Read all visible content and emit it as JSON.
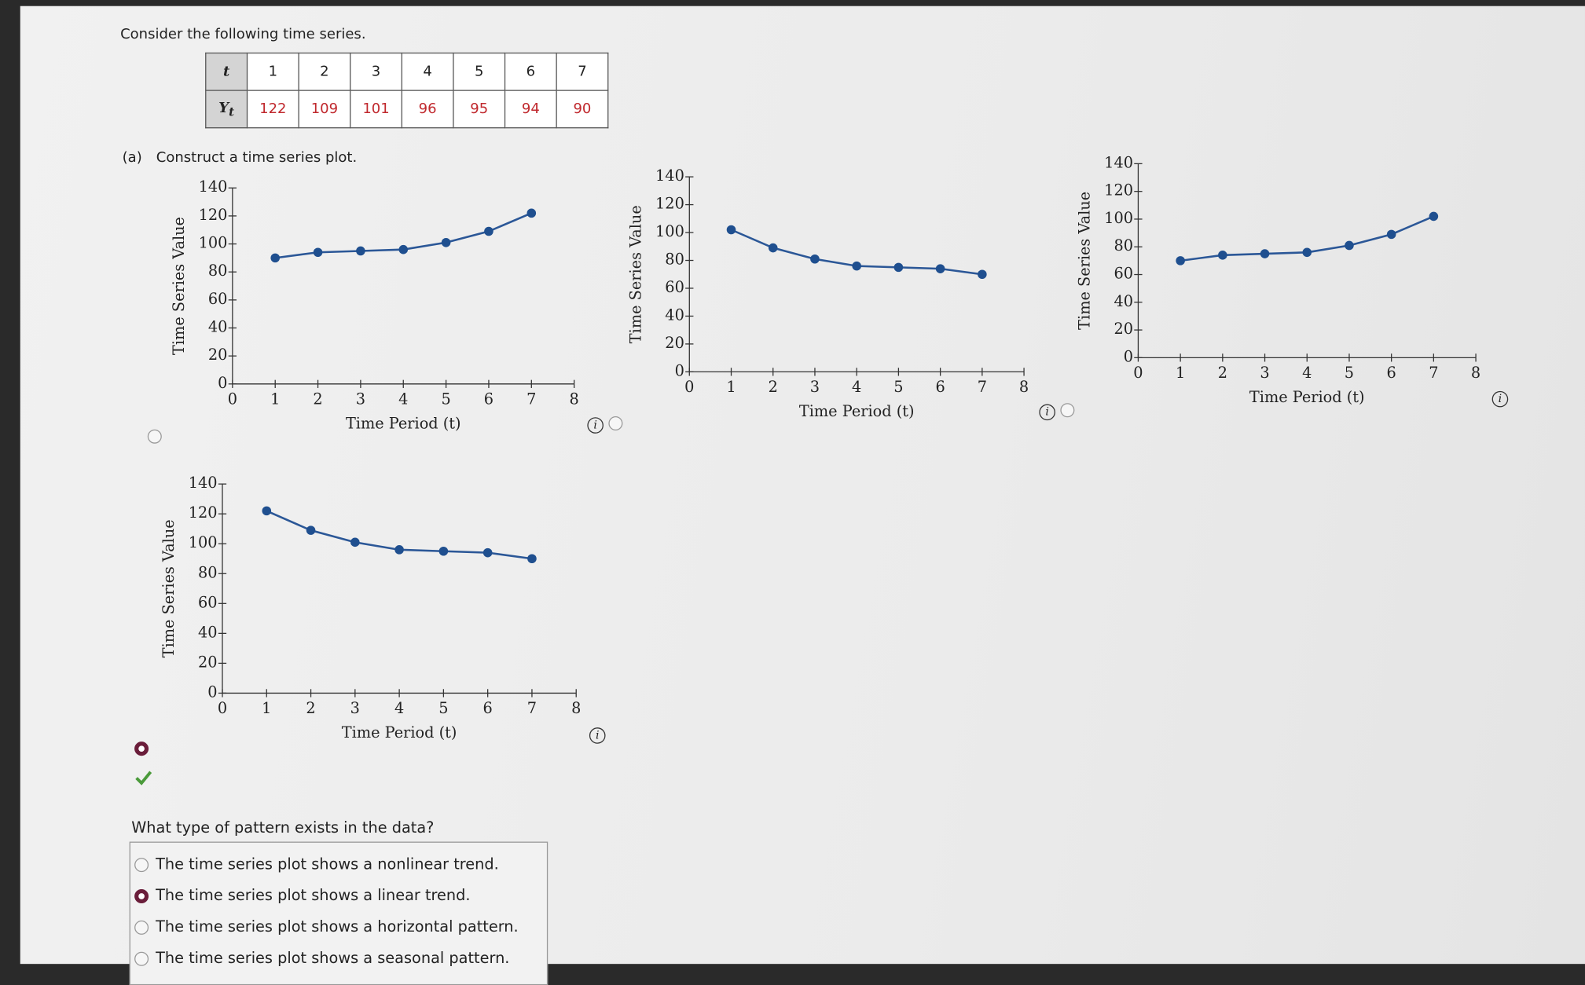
{
  "prompt": "Consider the following time series.",
  "table": {
    "header_label": "t",
    "header": [
      1,
      2,
      3,
      4,
      5,
      6,
      7
    ],
    "row_label": {
      "symbol": "Y",
      "subscript": "t"
    },
    "row": [
      122,
      109,
      101,
      96,
      95,
      94,
      90
    ]
  },
  "part_a": {
    "label": "(a)",
    "text": "Construct a time series plot."
  },
  "selected_plot": 3,
  "chart_data": [
    {
      "type": "line",
      "xlabel": "Time Period (t)",
      "ylabel": "Time Series Value",
      "color": "#2b5797",
      "x": [
        1,
        2,
        3,
        4,
        5,
        6,
        7
      ],
      "series": [
        {
          "values": [
            90,
            94,
            95,
            96,
            101,
            109,
            122
          ]
        }
      ],
      "xlim": [
        0,
        8
      ],
      "xticks": [
        0,
        1,
        2,
        3,
        4,
        5,
        6,
        7,
        8
      ],
      "ylim": [
        0,
        140
      ],
      "yticks": [
        0,
        20,
        40,
        60,
        80,
        100,
        120,
        140
      ]
    },
    {
      "type": "line",
      "xlabel": "Time Period (t)",
      "ylabel": "Time Series Value",
      "color": "#2b5797",
      "x": [
        1,
        2,
        3,
        4,
        5,
        6,
        7
      ],
      "series": [
        {
          "values": [
            102,
            89,
            81,
            76,
            75,
            74,
            70
          ]
        }
      ],
      "xlim": [
        0,
        8
      ],
      "xticks": [
        0,
        1,
        2,
        3,
        4,
        5,
        6,
        7,
        8
      ],
      "ylim": [
        0,
        140
      ],
      "yticks": [
        0,
        20,
        40,
        60,
        80,
        100,
        120,
        140
      ]
    },
    {
      "type": "line",
      "xlabel": "Time Period (t)",
      "ylabel": "Time Series Value",
      "color": "#2b5797",
      "x": [
        1,
        2,
        3,
        4,
        5,
        6,
        7
      ],
      "series": [
        {
          "values": [
            70,
            74,
            75,
            76,
            81,
            89,
            102
          ]
        }
      ],
      "xlim": [
        0,
        8
      ],
      "xticks": [
        0,
        1,
        2,
        3,
        4,
        5,
        6,
        7,
        8
      ],
      "ylim": [
        0,
        140
      ],
      "yticks": [
        0,
        20,
        40,
        60,
        80,
        100,
        120,
        140
      ]
    },
    {
      "type": "line",
      "xlabel": "Time Period (t)",
      "ylabel": "Time Series Value",
      "color": "#2b5797",
      "x": [
        1,
        2,
        3,
        4,
        5,
        6,
        7
      ],
      "series": [
        {
          "values": [
            122,
            109,
            101,
            96,
            95,
            94,
            90
          ]
        }
      ],
      "xlim": [
        0,
        8
      ],
      "xticks": [
        0,
        1,
        2,
        3,
        4,
        5,
        6,
        7,
        8
      ],
      "ylim": [
        0,
        140
      ],
      "yticks": [
        0,
        20,
        40,
        60,
        80,
        100,
        120,
        140
      ]
    }
  ],
  "question": "What type of pattern exists in the data?",
  "options": [
    "The time series plot shows a nonlinear trend.",
    "The time series plot shows a linear trend.",
    "The time series plot shows a horizontal pattern.",
    "The time series plot shows a seasonal pattern."
  ],
  "selected_option": 1
}
